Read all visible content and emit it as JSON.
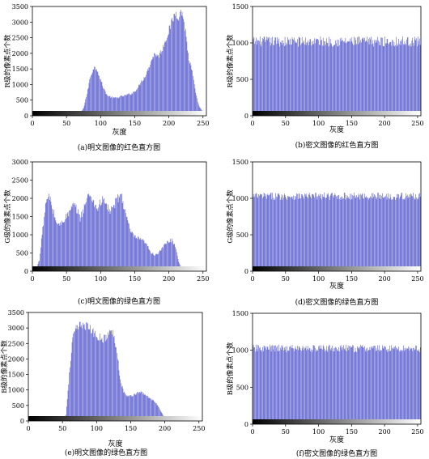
{
  "figure": {
    "colors": {
      "bar": "#3b3fc6",
      "bar_edge": "#2a2a9e",
      "axis": "#000000",
      "background": "#ffffff"
    }
  },
  "chart_data": [
    {
      "id": "a",
      "type": "bar",
      "caption": "(a)明文图像的红色直方图",
      "ylabel": "R级的像素点个数",
      "xlabel": "灰度",
      "xlim": [
        0,
        255
      ],
      "ylim": [
        0,
        3500
      ],
      "xticks": [
        0,
        50,
        100,
        150,
        200,
        250
      ],
      "yticks": [
        0,
        500,
        1000,
        1500,
        2000,
        2500,
        3000,
        3500
      ],
      "colorbar": true,
      "x": [
        0,
        10,
        20,
        30,
        40,
        50,
        55,
        60,
        65,
        70,
        75,
        80,
        85,
        90,
        95,
        100,
        105,
        110,
        115,
        120,
        125,
        130,
        135,
        140,
        145,
        150,
        155,
        160,
        165,
        170,
        175,
        180,
        185,
        190,
        195,
        200,
        205,
        210,
        215,
        220,
        225,
        230,
        235,
        240,
        245,
        250,
        255
      ],
      "values": [
        0,
        0,
        0,
        0,
        0,
        0,
        5,
        10,
        30,
        80,
        250,
        700,
        1250,
        1550,
        1500,
        1150,
        850,
        650,
        600,
        570,
        580,
        620,
        640,
        680,
        700,
        780,
        900,
        1100,
        1250,
        1500,
        1800,
        2000,
        1900,
        2100,
        2400,
        2700,
        3000,
        3300,
        3200,
        3350,
        2700,
        1800,
        1400,
        700,
        300,
        150,
        0
      ],
      "noise": 0.05
    },
    {
      "id": "b",
      "type": "bar",
      "caption": "(b)密文图像的红色直方图",
      "ylabel": "R级的像素点个数",
      "xlabel": "灰度",
      "xlim": [
        0,
        255
      ],
      "ylim": [
        0,
        1500
      ],
      "xticks": [
        0,
        50,
        100,
        150,
        200,
        250
      ],
      "yticks": [
        0,
        500,
        1000,
        1500
      ],
      "colorbar": true,
      "x": [
        0,
        255
      ],
      "values": [
        1020,
        1020
      ],
      "noise": 0.07
    },
    {
      "id": "c",
      "type": "bar",
      "caption": "(c)明文图像的绿色直方图",
      "ylabel": "G级的像素点个数",
      "xlabel": "",
      "xlim": [
        0,
        255
      ],
      "ylim": [
        0,
        3000
      ],
      "xticks": [
        0,
        50,
        100,
        150,
        200,
        250
      ],
      "yticks": [
        0,
        500,
        1000,
        1500,
        2000,
        2500,
        3000
      ],
      "colorbar": true,
      "x": [
        0,
        5,
        10,
        15,
        20,
        25,
        30,
        35,
        40,
        45,
        50,
        55,
        60,
        65,
        70,
        75,
        80,
        85,
        90,
        95,
        100,
        105,
        110,
        115,
        120,
        125,
        130,
        135,
        140,
        145,
        150,
        155,
        160,
        165,
        170,
        175,
        180,
        185,
        190,
        195,
        200,
        205,
        210,
        215,
        220,
        225,
        230,
        235,
        240,
        245,
        255
      ],
      "values": [
        0,
        50,
        300,
        1200,
        1900,
        2050,
        1650,
        1350,
        1250,
        1400,
        1500,
        1650,
        1800,
        1700,
        1450,
        1700,
        2000,
        2100,
        1900,
        1700,
        1900,
        1950,
        1750,
        1650,
        1800,
        2000,
        2100,
        1750,
        1350,
        1050,
        950,
        900,
        850,
        800,
        650,
        500,
        450,
        500,
        600,
        750,
        820,
        850,
        700,
        250,
        80,
        30,
        10,
        0,
        0,
        0,
        0
      ],
      "noise": 0.07
    },
    {
      "id": "d",
      "type": "bar",
      "caption": "(d)密文图像的绿色直方图",
      "ylabel": "G级的像素点个数",
      "xlabel": "灰度",
      "xlim": [
        0,
        255
      ],
      "ylim": [
        0,
        1500
      ],
      "xticks": [
        0,
        50,
        100,
        150,
        200,
        250
      ],
      "yticks": [
        0,
        500,
        1000,
        1500
      ],
      "colorbar": true,
      "x": [
        0,
        255
      ],
      "values": [
        1030,
        1030
      ],
      "noise": 0.05
    },
    {
      "id": "e",
      "type": "bar",
      "caption": "(e)明文图像的绿色直方图",
      "ylabel": "B级的像素点个数",
      "xlabel": "灰度",
      "xlim": [
        0,
        255
      ],
      "ylim": [
        0,
        3500
      ],
      "xticks": [
        0,
        50,
        100,
        150,
        200,
        250
      ],
      "yticks": [
        0,
        500,
        1000,
        1500,
        2000,
        2500,
        3000,
        3500
      ],
      "colorbar": true,
      "x": [
        0,
        40,
        45,
        50,
        55,
        60,
        65,
        70,
        75,
        80,
        85,
        90,
        95,
        100,
        105,
        110,
        115,
        120,
        125,
        130,
        135,
        140,
        145,
        150,
        155,
        160,
        165,
        170,
        175,
        180,
        185,
        190,
        195,
        200,
        205,
        210,
        220,
        230,
        255
      ],
      "values": [
        0,
        0,
        0,
        5,
        200,
        1500,
        2700,
        2950,
        3050,
        3150,
        3050,
        3000,
        2850,
        2750,
        2700,
        2650,
        2700,
        2900,
        2800,
        2300,
        1300,
        950,
        800,
        800,
        850,
        900,
        950,
        850,
        800,
        700,
        650,
        500,
        300,
        100,
        50,
        20,
        10,
        0,
        0
      ],
      "noise": 0.05
    },
    {
      "id": "f",
      "type": "bar",
      "caption": "(f)密文图像的绿色直方图",
      "ylabel": "B级的像素点个数",
      "xlabel": "灰度",
      "xlim": [
        0,
        255
      ],
      "ylim": [
        0,
        1500
      ],
      "xticks": [
        0,
        50,
        100,
        150,
        200,
        250
      ],
      "yticks": [
        0,
        500,
        1000,
        1500
      ],
      "colorbar": true,
      "x": [
        0,
        255
      ],
      "values": [
        1025,
        1025
      ],
      "noise": 0.05
    }
  ]
}
